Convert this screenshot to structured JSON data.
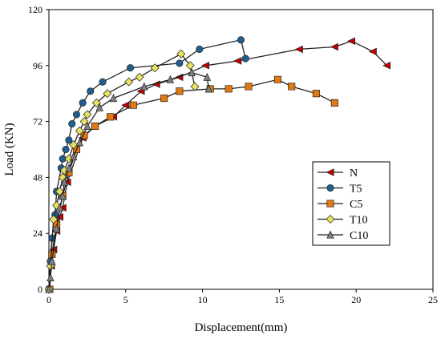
{
  "chart_data": {
    "type": "line",
    "xlabel": "Displacement(mm)",
    "ylabel": "Load (KN)",
    "xlim": [
      0,
      25
    ],
    "ylim": [
      0,
      120
    ],
    "xticks": [
      0,
      5,
      10,
      15,
      20,
      25
    ],
    "yticks": [
      0,
      24,
      48,
      72,
      96,
      120
    ],
    "grid": false,
    "legend_position": "right",
    "series": [
      {
        "name": "N",
        "color": "#c00000",
        "marker": "triangle-left",
        "points": [
          [
            0.05,
            0
          ],
          [
            0.15,
            10
          ],
          [
            0.3,
            17
          ],
          [
            0.5,
            25
          ],
          [
            0.7,
            31
          ],
          [
            0.9,
            35
          ],
          [
            1.2,
            46
          ],
          [
            2.2,
            65
          ],
          [
            3.0,
            70
          ],
          [
            4.2,
            74
          ],
          [
            5.0,
            79
          ],
          [
            6.0,
            85
          ],
          [
            7.0,
            88
          ],
          [
            8.5,
            91
          ],
          [
            10.2,
            96
          ],
          [
            12.3,
            98
          ],
          [
            16.3,
            103
          ],
          [
            18.6,
            104
          ],
          [
            19.7,
            106.5
          ],
          [
            21.1,
            102
          ],
          [
            22.0,
            96
          ]
        ]
      },
      {
        "name": "T5",
        "color": "#1f5f8f",
        "marker": "circle",
        "points": [
          [
            0.0,
            0
          ],
          [
            0.1,
            12
          ],
          [
            0.2,
            22
          ],
          [
            0.4,
            32
          ],
          [
            0.5,
            42
          ],
          [
            0.8,
            52
          ],
          [
            0.9,
            56
          ],
          [
            1.1,
            60
          ],
          [
            1.3,
            64
          ],
          [
            1.5,
            71
          ],
          [
            1.8,
            75
          ],
          [
            2.2,
            80
          ],
          [
            2.7,
            85
          ],
          [
            3.5,
            89
          ],
          [
            5.3,
            95
          ],
          [
            8.5,
            97
          ],
          [
            9.8,
            103
          ],
          [
            12.5,
            107
          ],
          [
            12.8,
            99
          ]
        ]
      },
      {
        "name": "C5",
        "color": "#e07a10",
        "marker": "square",
        "points": [
          [
            0.05,
            0
          ],
          [
            0.2,
            15
          ],
          [
            0.5,
            28
          ],
          [
            0.9,
            40
          ],
          [
            1.3,
            50
          ],
          [
            1.8,
            60
          ],
          [
            2.3,
            66
          ],
          [
            3.0,
            70
          ],
          [
            4.0,
            74
          ],
          [
            5.5,
            79
          ],
          [
            7.5,
            82
          ],
          [
            8.5,
            85
          ],
          [
            10.5,
            86
          ],
          [
            11.7,
            86
          ],
          [
            13.0,
            87
          ],
          [
            14.9,
            90
          ],
          [
            15.8,
            87
          ],
          [
            17.4,
            84
          ],
          [
            18.6,
            80
          ]
        ]
      },
      {
        "name": "T10",
        "color": "#e8e060",
        "marker": "diamond",
        "points": [
          [
            0.0,
            0
          ],
          [
            0.1,
            10
          ],
          [
            0.3,
            30
          ],
          [
            0.5,
            36
          ],
          [
            0.7,
            42
          ],
          [
            0.9,
            48
          ],
          [
            1.0,
            51
          ],
          [
            1.3,
            56
          ],
          [
            1.6,
            62
          ],
          [
            2.0,
            68
          ],
          [
            2.3,
            72
          ],
          [
            2.5,
            75
          ],
          [
            3.1,
            80
          ],
          [
            3.8,
            84
          ],
          [
            5.2,
            89
          ],
          [
            5.9,
            91
          ],
          [
            6.9,
            95
          ],
          [
            8.6,
            101
          ],
          [
            9.2,
            96
          ],
          [
            9.5,
            87
          ]
        ]
      },
      {
        "name": "C10",
        "color": "#808080",
        "marker": "triangle-up",
        "points": [
          [
            0.0,
            0
          ],
          [
            0.1,
            5
          ],
          [
            0.2,
            12
          ],
          [
            0.5,
            26
          ],
          [
            0.7,
            35
          ],
          [
            0.9,
            40
          ],
          [
            1.0,
            46
          ],
          [
            1.3,
            52
          ],
          [
            1.6,
            57
          ],
          [
            2.0,
            63
          ],
          [
            2.5,
            70
          ],
          [
            3.3,
            78
          ],
          [
            4.2,
            82
          ],
          [
            6.2,
            87
          ],
          [
            7.9,
            90
          ],
          [
            9.3,
            93
          ],
          [
            10.3,
            91
          ],
          [
            10.4,
            86
          ]
        ]
      }
    ]
  }
}
